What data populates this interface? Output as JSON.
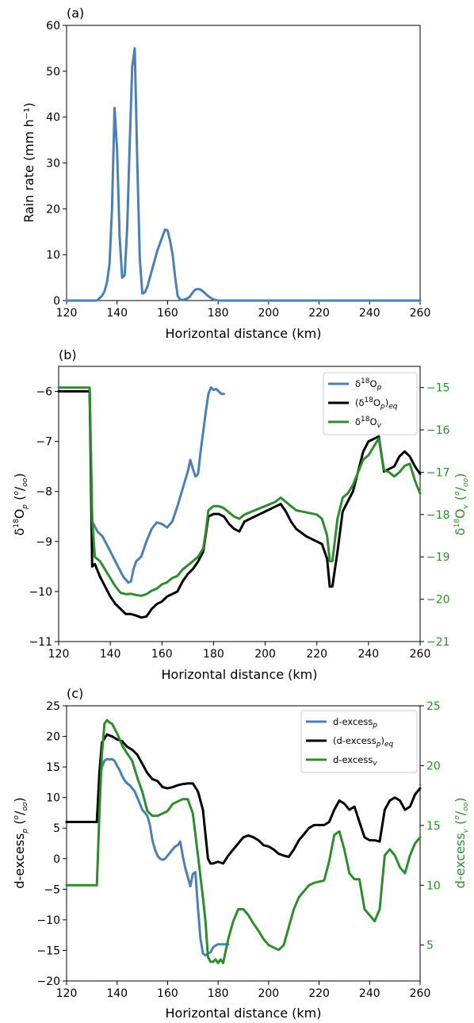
{
  "colors": {
    "blue": "#4c7fb4",
    "black": "#000000",
    "green": "#2e8b2e"
  },
  "chart_data": [
    {
      "panel_label": "(a)",
      "type": "line",
      "xlabel": "Horizontal distance (km)",
      "ylabel": "Rain rate (mm h⁻¹)",
      "xlim": [
        120,
        260
      ],
      "ylim": [
        0,
        60
      ],
      "xticks": [
        "120",
        "140",
        "160",
        "180",
        "200",
        "220",
        "240",
        "260"
      ],
      "yticks": [
        "0",
        "10",
        "20",
        "30",
        "40",
        "50",
        "60"
      ],
      "series": [
        {
          "color": "#4c7fb4",
          "x": [
            120,
            132,
            134,
            135,
            136,
            137,
            138,
            139,
            140,
            141,
            142,
            143,
            144,
            145,
            146,
            147,
            148,
            149,
            150,
            151,
            152,
            153,
            154,
            155,
            156,
            157,
            158,
            159,
            160,
            161,
            162,
            163,
            164,
            165,
            166,
            167,
            168,
            169,
            170,
            171,
            172,
            173,
            174,
            175,
            176,
            177,
            178,
            179,
            180,
            181,
            182,
            183,
            184,
            190,
            260
          ],
          "y": [
            0,
            0,
            1,
            2,
            4,
            8,
            20,
            42,
            33,
            14,
            5,
            5.5,
            16,
            34,
            51,
            55,
            30,
            9,
            1.5,
            1.8,
            3,
            5,
            7,
            9,
            11,
            12.5,
            14,
            15.5,
            15.3,
            13,
            10,
            5,
            1,
            0.2,
            0.1,
            0.3,
            0.5,
            1,
            1.8,
            2.4,
            2.5,
            2.4,
            2,
            1.5,
            1,
            0.6,
            0.3,
            0.1,
            0,
            0,
            0,
            0,
            0,
            0,
            0
          ]
        }
      ]
    },
    {
      "panel_label": "(b)",
      "type": "line",
      "xlabel": "Horizontal distance (km)",
      "xlim": [
        120,
        260
      ],
      "ylim_left": [
        -11,
        -5.5
      ],
      "ylim_right": [
        -21,
        -14.5
      ],
      "xticks": [
        "120",
        "140",
        "160",
        "180",
        "200",
        "220",
        "240",
        "260"
      ],
      "yticks_left": [
        "−11",
        "−10",
        "−9",
        "−8",
        "−7",
        "−6"
      ],
      "yticks_right": [
        "−21",
        "−20",
        "−19",
        "−18",
        "−17",
        "−16",
        "−15"
      ],
      "legend_position": "top-right",
      "series": [
        {
          "name": "δ¹⁸O_p",
          "color": "#4c7fb4",
          "axis": "left",
          "x": [
            120,
            132,
            133,
            135,
            137,
            139,
            141,
            143,
            145,
            147,
            148,
            149,
            150,
            152,
            154,
            156,
            158,
            160,
            162,
            164,
            166,
            168,
            170,
            171,
            172,
            173,
            174,
            175,
            176,
            177,
            178,
            179,
            180,
            181,
            182,
            183,
            184
          ],
          "y": [
            -6,
            -6,
            -8.6,
            -8.8,
            -8.9,
            -9.1,
            -9.3,
            -9.5,
            -9.7,
            -9.82,
            -9.8,
            -9.55,
            -9.4,
            -9.3,
            -9.0,
            -8.75,
            -8.62,
            -8.65,
            -8.72,
            -8.6,
            -8.3,
            -7.95,
            -7.6,
            -7.37,
            -7.55,
            -7.7,
            -7.65,
            -7.2,
            -6.8,
            -6.4,
            -6.05,
            -5.92,
            -5.97,
            -5.95,
            -6.0,
            -6.05,
            -6.05
          ]
        },
        {
          "name": "(δ¹⁸O_p)_eq",
          "color": "#000000",
          "axis": "left",
          "x": [
            120,
            132,
            133,
            134,
            136,
            138,
            140,
            142,
            144,
            146,
            148,
            150,
            152,
            154,
            156,
            158,
            160,
            162,
            164,
            166,
            168,
            170,
            172,
            174,
            176,
            177,
            178,
            180,
            182,
            184,
            186,
            188,
            190,
            192,
            196,
            200,
            204,
            206,
            208,
            210,
            212,
            216,
            220,
            222,
            224,
            225,
            226,
            228,
            230,
            232,
            234,
            236,
            238,
            240,
            242,
            244,
            246,
            248,
            250,
            252,
            254,
            256,
            258,
            260
          ],
          "y": [
            -6,
            -6,
            -9.5,
            -9.45,
            -9.7,
            -9.9,
            -10.1,
            -10.25,
            -10.35,
            -10.45,
            -10.45,
            -10.48,
            -10.52,
            -10.5,
            -10.35,
            -10.25,
            -10.2,
            -10.1,
            -10.05,
            -10.0,
            -9.8,
            -9.65,
            -9.55,
            -9.4,
            -9.2,
            -8.85,
            -8.5,
            -8.45,
            -8.45,
            -8.5,
            -8.65,
            -8.75,
            -8.8,
            -8.6,
            -8.5,
            -8.4,
            -8.3,
            -8.25,
            -8.4,
            -8.6,
            -8.75,
            -8.9,
            -9.0,
            -9.05,
            -9.35,
            -9.9,
            -9.9,
            -9.2,
            -8.4,
            -8.2,
            -8.0,
            -7.6,
            -7.2,
            -7.0,
            -6.95,
            -6.9,
            -7.6,
            -7.55,
            -7.5,
            -7.3,
            -7.2,
            -7.3,
            -7.5,
            -7.65
          ]
        },
        {
          "name": "δ¹⁸O_v",
          "color": "#2e8b2e",
          "axis": "right",
          "x": [
            120,
            132,
            133,
            134,
            136,
            138,
            140,
            142,
            144,
            146,
            148,
            150,
            152,
            154,
            156,
            158,
            160,
            162,
            164,
            166,
            168,
            170,
            172,
            174,
            176,
            177,
            178,
            180,
            182,
            184,
            186,
            188,
            190,
            192,
            196,
            200,
            204,
            206,
            208,
            210,
            212,
            216,
            220,
            222,
            224,
            225,
            226,
            228,
            230,
            232,
            234,
            236,
            238,
            240,
            242,
            244,
            246,
            248,
            250,
            252,
            254,
            256,
            258,
            260
          ],
          "y": [
            -15,
            -15,
            -18.1,
            -19.0,
            -19.1,
            -19.3,
            -19.5,
            -19.7,
            -19.85,
            -19.88,
            -19.87,
            -19.9,
            -19.92,
            -19.88,
            -19.8,
            -19.75,
            -19.65,
            -19.6,
            -19.5,
            -19.45,
            -19.3,
            -19.2,
            -19.1,
            -19.0,
            -18.8,
            -18.4,
            -17.9,
            -17.8,
            -17.8,
            -17.85,
            -17.95,
            -18.05,
            -18.1,
            -18.0,
            -17.9,
            -17.8,
            -17.7,
            -17.6,
            -17.7,
            -17.8,
            -17.9,
            -17.95,
            -18.0,
            -18.1,
            -18.5,
            -19.1,
            -19.1,
            -18.1,
            -17.6,
            -17.5,
            -17.3,
            -17.0,
            -16.7,
            -16.6,
            -16.4,
            -16.2,
            -16.95,
            -17.0,
            -17.1,
            -17.0,
            -16.85,
            -16.8,
            -17.2,
            -17.5
          ]
        }
      ]
    },
    {
      "panel_label": "(c)",
      "type": "line",
      "xlabel": "Horizontal distance (km)",
      "xlim": [
        120,
        260
      ],
      "ylim_left": [
        -20,
        25
      ],
      "ylim_right": [
        2,
        25
      ],
      "xticks": [
        "120",
        "140",
        "160",
        "180",
        "200",
        "220",
        "240",
        "260"
      ],
      "yticks_left": [
        "−20",
        "−15",
        "−10",
        "−5",
        "0",
        "5",
        "10",
        "15",
        "20",
        "25"
      ],
      "yticks_right": [
        "5",
        "10",
        "15",
        "20",
        "25"
      ],
      "legend_position": "top-right",
      "series": [
        {
          "name": "d-excess_p",
          "color": "#4c7fb4",
          "axis": "left",
          "x": [
            120,
            132,
            133,
            134,
            135,
            136,
            137,
            138,
            139,
            140,
            141,
            142,
            143,
            144,
            145,
            146,
            147,
            148,
            149,
            150,
            151,
            152,
            153,
            154,
            155,
            156,
            157,
            158,
            159,
            160,
            161,
            162,
            163,
            164,
            165,
            166,
            167,
            168,
            169,
            170,
            171,
            172,
            173,
            174,
            175,
            176,
            177,
            178,
            179,
            180,
            181,
            182,
            183,
            184
          ],
          "y": [
            6,
            6,
            13,
            15,
            16,
            16.3,
            16.2,
            16.3,
            16,
            15.2,
            14.5,
            13.5,
            12.8,
            12.3,
            12,
            11.5,
            11,
            10,
            9,
            8,
            7.5,
            7,
            5.5,
            3,
            1.5,
            0.5,
            0,
            -0.2,
            0,
            0.5,
            1,
            1.5,
            2,
            2.2,
            2.8,
            0.5,
            -1.5,
            -3,
            -4.5,
            -2.5,
            -2.2,
            -8,
            -13,
            -15.5,
            -15.8,
            -15.5,
            -15.3,
            -14.5,
            -14.2,
            -14,
            -14,
            -14,
            -14,
            -14
          ]
        },
        {
          "name": "(d-excess_p)_eq",
          "color": "#000000",
          "axis": "left",
          "x": [
            120,
            132,
            133,
            134,
            136,
            138,
            140,
            142,
            144,
            146,
            148,
            150,
            152,
            154,
            156,
            158,
            160,
            162,
            164,
            166,
            168,
            170,
            172,
            174,
            175,
            176,
            177,
            178,
            180,
            182,
            184,
            186,
            188,
            190,
            192,
            194,
            196,
            198,
            200,
            202,
            204,
            206,
            208,
            210,
            212,
            214,
            216,
            218,
            220,
            222,
            224,
            226,
            228,
            230,
            232,
            234,
            236,
            238,
            240,
            242,
            244,
            246,
            248,
            250,
            252,
            254,
            256,
            258,
            260
          ],
          "y": [
            6,
            6,
            14,
            19,
            20.3,
            20,
            19.5,
            19.2,
            18.3,
            17.8,
            17,
            15.5,
            14,
            13,
            12.7,
            11.7,
            11.5,
            11.7,
            12,
            12.2,
            12.3,
            12.3,
            11,
            8,
            4,
            0,
            -0.8,
            -0.8,
            -0.5,
            -0.8,
            0.5,
            1.5,
            2.5,
            3.5,
            3.8,
            3.5,
            3,
            2.2,
            2,
            1.5,
            0.8,
            0.5,
            0.3,
            1.5,
            3,
            4,
            5,
            5.5,
            5.5,
            5.5,
            6,
            8,
            9.5,
            9,
            8,
            8.5,
            6,
            3.5,
            3,
            3,
            2.8,
            8,
            9.5,
            10,
            9.5,
            8,
            8.5,
            10.5,
            11.5
          ]
        },
        {
          "name": "d-excess_v",
          "color": "#2e8b2e",
          "axis": "right",
          "x": [
            120,
            132,
            133,
            134,
            135,
            136,
            137,
            138,
            140,
            142,
            144,
            146,
            148,
            150,
            152,
            154,
            156,
            158,
            160,
            162,
            164,
            166,
            168,
            170,
            172,
            174,
            175,
            176,
            177,
            178,
            179,
            180,
            181,
            182,
            183,
            184,
            186,
            188,
            190,
            192,
            194,
            196,
            198,
            200,
            202,
            204,
            206,
            208,
            210,
            212,
            214,
            216,
            218,
            220,
            222,
            224,
            226,
            228,
            230,
            232,
            234,
            236,
            238,
            240,
            242,
            244,
            246,
            248,
            250,
            252,
            254,
            256,
            258,
            260
          ],
          "y": [
            10,
            10,
            16,
            21,
            23.5,
            23.8,
            23.6,
            23.5,
            22.7,
            21.7,
            21,
            20.4,
            19,
            17.8,
            16.2,
            15.8,
            15.8,
            16,
            16.2,
            16.8,
            17,
            17.2,
            17.2,
            16,
            12.5,
            9,
            7,
            4,
            3.6,
            3.6,
            3.8,
            3.5,
            3.8,
            3.5,
            4.5,
            5.5,
            7,
            8,
            8,
            7.5,
            6.8,
            6.2,
            5.5,
            5,
            4.8,
            4.6,
            5,
            6.5,
            8,
            9,
            9.5,
            10,
            10.2,
            10.3,
            10.4,
            12,
            14.2,
            14.5,
            13,
            11,
            10.5,
            10.5,
            8,
            7.5,
            7,
            8,
            12.5,
            13,
            12.5,
            11.5,
            11,
            12.5,
            13.5,
            14
          ]
        }
      ]
    }
  ]
}
